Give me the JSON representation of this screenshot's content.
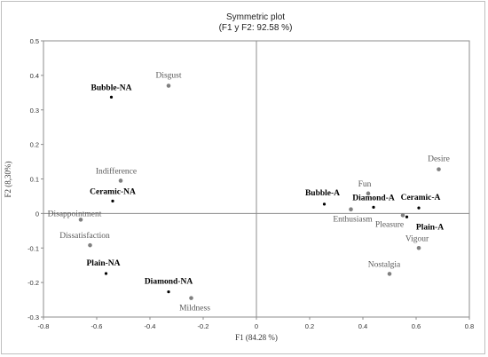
{
  "chart_data": {
    "type": "scatter",
    "title": "Symmetric plot",
    "subtitle": "(F1 y F2: 92.58 %)",
    "xlabel": "F1 (84.28 %)",
    "ylabel": "F2 (8,30%)",
    "xlim": [
      -0.8,
      0.8
    ],
    "ylim": [
      -0.3,
      0.5
    ],
    "xticks": [
      "-0.8",
      "-0.6",
      "-0.4",
      "-0.2",
      "0",
      "0.2",
      "0.4",
      "0.6",
      "0.8"
    ],
    "yticks": [
      "0.5",
      "0.4",
      "0.3",
      "0.2",
      "0.1",
      "0",
      "-0.1",
      "-0.2",
      "-0.3"
    ],
    "series": [
      {
        "name": "",
        "marker_color": "#808080",
        "points": [
          {
            "label": "Disgust",
            "x": -0.33,
            "y": 0.37
          },
          {
            "label": "Indifference",
            "x": -0.51,
            "y": 0.095
          },
          {
            "label": "Disappointment",
            "x": -0.66,
            "y": -0.018
          },
          {
            "label": "Dissatisfaction",
            "x": -0.625,
            "y": -0.092
          },
          {
            "label": "Mildness",
            "x": -0.245,
            "y": -0.245
          },
          {
            "label": "Fun",
            "x": 0.42,
            "y": 0.058
          },
          {
            "label": "Enthusiasm",
            "x": 0.355,
            "y": 0.012
          },
          {
            "label": "Desire",
            "x": 0.685,
            "y": 0.128
          },
          {
            "label": "Pleasure",
            "x": 0.55,
            "y": -0.005
          },
          {
            "label": "Vigour",
            "x": 0.61,
            "y": -0.1
          },
          {
            "label": "Nostalgia",
            "x": 0.5,
            "y": -0.175
          }
        ]
      },
      {
        "name": "",
        "marker_color": "#000000",
        "points": [
          {
            "label": "Bubble-NA",
            "x": -0.545,
            "y": 0.337
          },
          {
            "label": "Ceramic-NA",
            "x": -0.54,
            "y": 0.036
          },
          {
            "label": "Plain-NA",
            "x": -0.565,
            "y": -0.174
          },
          {
            "label": "Diamond-NA",
            "x": -0.33,
            "y": -0.227
          },
          {
            "label": "Bubble-A",
            "x": 0.255,
            "y": 0.027
          },
          {
            "label": "Diamond-A",
            "x": 0.44,
            "y": 0.018
          },
          {
            "label": "Ceramic-A",
            "x": 0.61,
            "y": 0.016
          },
          {
            "label": "Plain-A",
            "x": 0.565,
            "y": -0.01
          }
        ]
      }
    ],
    "grid": false,
    "legend": "none"
  }
}
